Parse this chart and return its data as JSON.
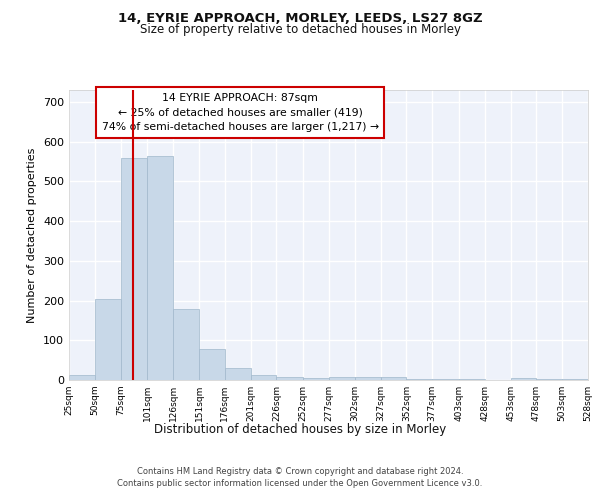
{
  "title1": "14, EYRIE APPROACH, MORLEY, LEEDS, LS27 8GZ",
  "title2": "Size of property relative to detached houses in Morley",
  "xlabel": "Distribution of detached houses by size in Morley",
  "ylabel": "Number of detached properties",
  "footnote1": "Contains HM Land Registry data © Crown copyright and database right 2024.",
  "footnote2": "Contains public sector information licensed under the Open Government Licence v3.0.",
  "annotation_line1": "14 EYRIE APPROACH: 87sqm",
  "annotation_line2": "← 25% of detached houses are smaller (419)",
  "annotation_line3": "74% of semi-detached houses are larger (1,217) →",
  "bar_color": "#c8d8e8",
  "bar_edge_color": "#a0b8cc",
  "ref_line_color": "#cc0000",
  "ref_line_x": 87,
  "bin_edges": [
    25,
    50,
    75,
    101,
    126,
    151,
    176,
    201,
    226,
    252,
    277,
    302,
    327,
    352,
    377,
    403,
    428,
    453,
    478,
    503,
    528
  ],
  "bar_heights": [
    12,
    205,
    560,
    565,
    178,
    78,
    30,
    12,
    8,
    5,
    8,
    8,
    8,
    3,
    3,
    3,
    0,
    5,
    3,
    3
  ],
  "ylim": [
    0,
    730
  ],
  "yticks": [
    0,
    100,
    200,
    300,
    400,
    500,
    600,
    700
  ],
  "background_color": "#eef2fa",
  "grid_color": "#ffffff"
}
